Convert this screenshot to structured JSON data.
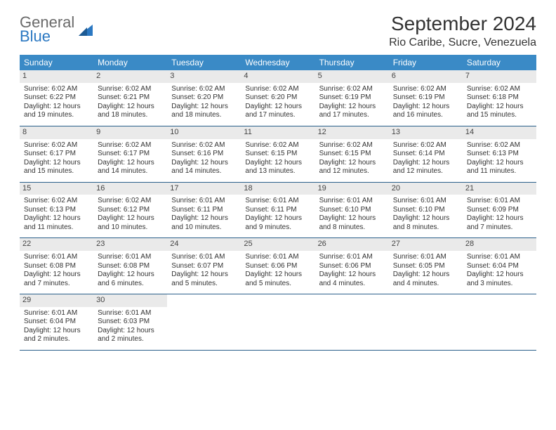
{
  "logo": {
    "word1": "General",
    "word2": "Blue"
  },
  "header": {
    "title": "September 2024",
    "location": "Rio Caribe, Sucre, Venezuela"
  },
  "colors": {
    "header_bar": "#3a8ac6",
    "header_text": "#ffffff",
    "daynum_bg": "#eaeaea",
    "week_border": "#2a5f8a",
    "logo_gray": "#6a6a6a",
    "logo_blue": "#2b78c2",
    "page_bg": "#ffffff"
  },
  "days_of_week": [
    "Sunday",
    "Monday",
    "Tuesday",
    "Wednesday",
    "Thursday",
    "Friday",
    "Saturday"
  ],
  "weeks": [
    [
      {
        "n": "1",
        "sr": "Sunrise: 6:02 AM",
        "ss": "Sunset: 6:22 PM",
        "dl": "Daylight: 12 hours and 19 minutes."
      },
      {
        "n": "2",
        "sr": "Sunrise: 6:02 AM",
        "ss": "Sunset: 6:21 PM",
        "dl": "Daylight: 12 hours and 18 minutes."
      },
      {
        "n": "3",
        "sr": "Sunrise: 6:02 AM",
        "ss": "Sunset: 6:20 PM",
        "dl": "Daylight: 12 hours and 18 minutes."
      },
      {
        "n": "4",
        "sr": "Sunrise: 6:02 AM",
        "ss": "Sunset: 6:20 PM",
        "dl": "Daylight: 12 hours and 17 minutes."
      },
      {
        "n": "5",
        "sr": "Sunrise: 6:02 AM",
        "ss": "Sunset: 6:19 PM",
        "dl": "Daylight: 12 hours and 17 minutes."
      },
      {
        "n": "6",
        "sr": "Sunrise: 6:02 AM",
        "ss": "Sunset: 6:19 PM",
        "dl": "Daylight: 12 hours and 16 minutes."
      },
      {
        "n": "7",
        "sr": "Sunrise: 6:02 AM",
        "ss": "Sunset: 6:18 PM",
        "dl": "Daylight: 12 hours and 15 minutes."
      }
    ],
    [
      {
        "n": "8",
        "sr": "Sunrise: 6:02 AM",
        "ss": "Sunset: 6:17 PM",
        "dl": "Daylight: 12 hours and 15 minutes."
      },
      {
        "n": "9",
        "sr": "Sunrise: 6:02 AM",
        "ss": "Sunset: 6:17 PM",
        "dl": "Daylight: 12 hours and 14 minutes."
      },
      {
        "n": "10",
        "sr": "Sunrise: 6:02 AM",
        "ss": "Sunset: 6:16 PM",
        "dl": "Daylight: 12 hours and 14 minutes."
      },
      {
        "n": "11",
        "sr": "Sunrise: 6:02 AM",
        "ss": "Sunset: 6:15 PM",
        "dl": "Daylight: 12 hours and 13 minutes."
      },
      {
        "n": "12",
        "sr": "Sunrise: 6:02 AM",
        "ss": "Sunset: 6:15 PM",
        "dl": "Daylight: 12 hours and 12 minutes."
      },
      {
        "n": "13",
        "sr": "Sunrise: 6:02 AM",
        "ss": "Sunset: 6:14 PM",
        "dl": "Daylight: 12 hours and 12 minutes."
      },
      {
        "n": "14",
        "sr": "Sunrise: 6:02 AM",
        "ss": "Sunset: 6:13 PM",
        "dl": "Daylight: 12 hours and 11 minutes."
      }
    ],
    [
      {
        "n": "15",
        "sr": "Sunrise: 6:02 AM",
        "ss": "Sunset: 6:13 PM",
        "dl": "Daylight: 12 hours and 11 minutes."
      },
      {
        "n": "16",
        "sr": "Sunrise: 6:02 AM",
        "ss": "Sunset: 6:12 PM",
        "dl": "Daylight: 12 hours and 10 minutes."
      },
      {
        "n": "17",
        "sr": "Sunrise: 6:01 AM",
        "ss": "Sunset: 6:11 PM",
        "dl": "Daylight: 12 hours and 10 minutes."
      },
      {
        "n": "18",
        "sr": "Sunrise: 6:01 AM",
        "ss": "Sunset: 6:11 PM",
        "dl": "Daylight: 12 hours and 9 minutes."
      },
      {
        "n": "19",
        "sr": "Sunrise: 6:01 AM",
        "ss": "Sunset: 6:10 PM",
        "dl": "Daylight: 12 hours and 8 minutes."
      },
      {
        "n": "20",
        "sr": "Sunrise: 6:01 AM",
        "ss": "Sunset: 6:10 PM",
        "dl": "Daylight: 12 hours and 8 minutes."
      },
      {
        "n": "21",
        "sr": "Sunrise: 6:01 AM",
        "ss": "Sunset: 6:09 PM",
        "dl": "Daylight: 12 hours and 7 minutes."
      }
    ],
    [
      {
        "n": "22",
        "sr": "Sunrise: 6:01 AM",
        "ss": "Sunset: 6:08 PM",
        "dl": "Daylight: 12 hours and 7 minutes."
      },
      {
        "n": "23",
        "sr": "Sunrise: 6:01 AM",
        "ss": "Sunset: 6:08 PM",
        "dl": "Daylight: 12 hours and 6 minutes."
      },
      {
        "n": "24",
        "sr": "Sunrise: 6:01 AM",
        "ss": "Sunset: 6:07 PM",
        "dl": "Daylight: 12 hours and 5 minutes."
      },
      {
        "n": "25",
        "sr": "Sunrise: 6:01 AM",
        "ss": "Sunset: 6:06 PM",
        "dl": "Daylight: 12 hours and 5 minutes."
      },
      {
        "n": "26",
        "sr": "Sunrise: 6:01 AM",
        "ss": "Sunset: 6:06 PM",
        "dl": "Daylight: 12 hours and 4 minutes."
      },
      {
        "n": "27",
        "sr": "Sunrise: 6:01 AM",
        "ss": "Sunset: 6:05 PM",
        "dl": "Daylight: 12 hours and 4 minutes."
      },
      {
        "n": "28",
        "sr": "Sunrise: 6:01 AM",
        "ss": "Sunset: 6:04 PM",
        "dl": "Daylight: 12 hours and 3 minutes."
      }
    ],
    [
      {
        "n": "29",
        "sr": "Sunrise: 6:01 AM",
        "ss": "Sunset: 6:04 PM",
        "dl": "Daylight: 12 hours and 2 minutes."
      },
      {
        "n": "30",
        "sr": "Sunrise: 6:01 AM",
        "ss": "Sunset: 6:03 PM",
        "dl": "Daylight: 12 hours and 2 minutes."
      },
      null,
      null,
      null,
      null,
      null
    ]
  ]
}
